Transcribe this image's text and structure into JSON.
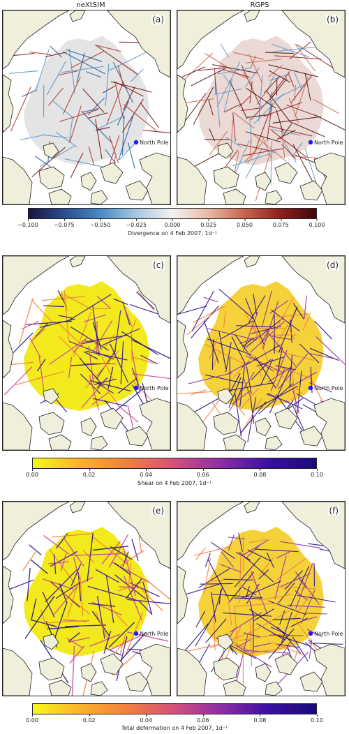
{
  "columns": {
    "left": "neXtSIM",
    "right": "RGPS"
  },
  "panels": [
    {
      "label": "(a)",
      "field": "divergence",
      "source": "neXtSIM"
    },
    {
      "label": "(b)",
      "field": "divergence",
      "source": "RGPS"
    },
    {
      "label": "(c)",
      "field": "shear",
      "source": "neXtSIM"
    },
    {
      "label": "(d)",
      "field": "shear",
      "source": "RGPS"
    },
    {
      "label": "(e)",
      "field": "total",
      "source": "neXtSIM"
    },
    {
      "label": "(f)",
      "field": "total",
      "source": "RGPS"
    }
  ],
  "marker": {
    "label": "North Pole",
    "color": "#1a1aff"
  },
  "colorbars": [
    {
      "id": "divergence",
      "label": "Divergence on 4 Feb 2007, 1d⁻¹",
      "ticks": [
        "−0.100",
        "−0.075",
        "−0.050",
        "−0.025",
        "0.000",
        "0.025",
        "0.050",
        "0.075",
        "0.100"
      ],
      "gradient": [
        "#1a1540",
        "#2a4d8f",
        "#4a8ac6",
        "#a9c8e0",
        "#f2f2f2",
        "#e8b9a6",
        "#c8644f",
        "#8f1f1f",
        "#3d0a0a"
      ]
    },
    {
      "id": "shear",
      "label": "Shear on 4 Feb 2007, 1d⁻¹",
      "ticks": [
        "0.00",
        "0.02",
        "0.04",
        "0.06",
        "0.08",
        "0.10"
      ],
      "gradient": [
        "#f5f91a",
        "#fbb22a",
        "#f08040",
        "#d4507a",
        "#8c2da6",
        "#3a0fa0",
        "#1a0a7a"
      ]
    },
    {
      "id": "total",
      "label": "Total deformation on 4 Feb 2007, 1d⁻¹",
      "ticks": [
        "0.00",
        "0.02",
        "0.04",
        "0.06",
        "0.08",
        "0.10"
      ],
      "gradient": [
        "#f5f91a",
        "#fbb22a",
        "#f08040",
        "#d4507a",
        "#8c2da6",
        "#3a0fa0",
        "#1a0a7a"
      ]
    }
  ],
  "colors": {
    "land": "#efefdb",
    "coast": "#222222",
    "ice_div": "#e3e3e3",
    "ice_shear": "#f0e81e"
  }
}
